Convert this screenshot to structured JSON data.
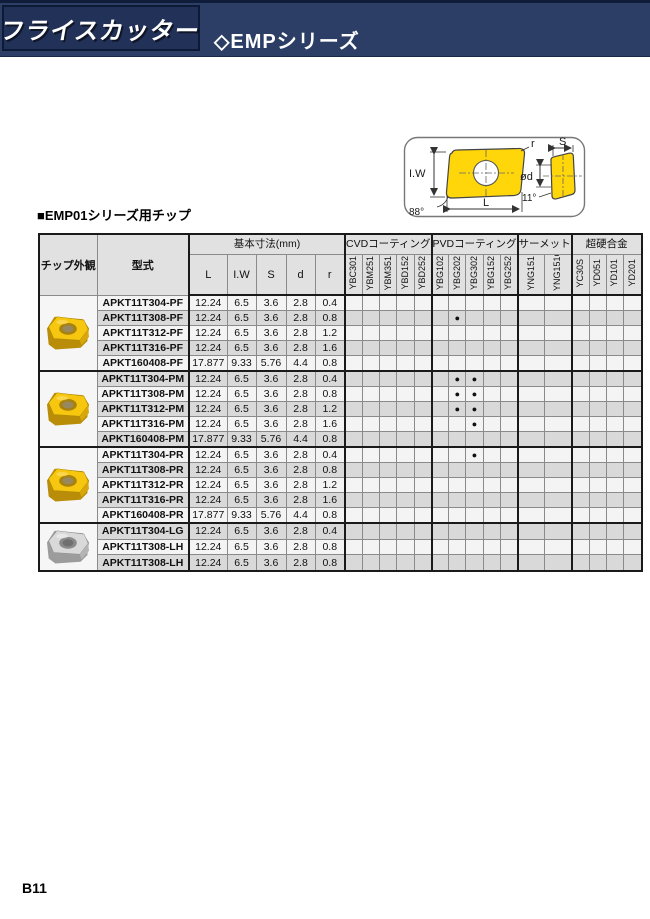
{
  "top_bar": {
    "product_title": "フライスカッター",
    "series_title": "◇EMPシリーズ",
    "bar_color": "#2c3e65",
    "box_color": "#223158"
  },
  "diagram": {
    "labels": {
      "corner_radius": "r",
      "insert_width": "I.W",
      "length": "L",
      "corner_angle": "88°",
      "thickness": "S",
      "hole_diameter": "ød",
      "clearance_angle": "11°"
    }
  },
  "section_title": "■EMP01シリーズ用チップ",
  "table": {
    "appearance_label": "チップ外観",
    "model_label": "型式",
    "dims_label": "基本寸法(mm)",
    "dim_cols": [
      "L",
      "I.W",
      "S",
      "d",
      "r"
    ],
    "column_groups": [
      {
        "label": "CVDコーティング",
        "cols": [
          "YBC301",
          "YBM251",
          "YBM351",
          "YBD152",
          "YBD252"
        ]
      },
      {
        "label": "PVDコーティング",
        "cols": [
          "YBG102",
          "YBG202",
          "YBG302",
          "YBG152",
          "YBG252"
        ]
      },
      {
        "label": "サーメット",
        "cols": [
          "YNG151",
          "YNG151C"
        ]
      },
      {
        "label": "超硬合金",
        "cols": [
          "YC30S",
          "YD051",
          "YD101",
          "YD201"
        ]
      }
    ],
    "coating_column_ids": [
      "YBC301",
      "YBM251",
      "YBM351",
      "YBD152",
      "YBD252",
      "YBG102",
      "YBG202",
      "YBG302",
      "YBG152",
      "YBG252",
      "YNG151",
      "YNG151C",
      "YC30S",
      "YD051",
      "YD101",
      "YD201"
    ],
    "dot_marker": "●",
    "row_groups": [
      {
        "insert": "yellow",
        "rows": [
          {
            "model": "APKT11T304-PF",
            "dims": [
              "12.24",
              "6.5",
              "3.6",
              "2.8",
              "0.4"
            ],
            "dots": []
          },
          {
            "model": "APKT11T308-PF",
            "dims": [
              "12.24",
              "6.5",
              "3.6",
              "2.8",
              "0.8"
            ],
            "dots": [
              "YBG202"
            ]
          },
          {
            "model": "APKT11T312-PF",
            "dims": [
              "12.24",
              "6.5",
              "3.6",
              "2.8",
              "1.2"
            ],
            "dots": []
          },
          {
            "model": "APKT11T316-PF",
            "dims": [
              "12.24",
              "6.5",
              "3.6",
              "2.8",
              "1.6"
            ],
            "dots": []
          },
          {
            "model": "APKT160408-PF",
            "dims": [
              "17.877",
              "9.33",
              "5.76",
              "4.4",
              "0.8"
            ],
            "dots": []
          }
        ]
      },
      {
        "insert": "yellow",
        "rows": [
          {
            "model": "APKT11T304-PM",
            "dims": [
              "12.24",
              "6.5",
              "3.6",
              "2.8",
              "0.4"
            ],
            "dots": [
              "YBG202",
              "YBG302"
            ]
          },
          {
            "model": "APKT11T308-PM",
            "dims": [
              "12.24",
              "6.5",
              "3.6",
              "2.8",
              "0.8"
            ],
            "dots": [
              "YBG202",
              "YBG302"
            ]
          },
          {
            "model": "APKT11T312-PM",
            "dims": [
              "12.24",
              "6.5",
              "3.6",
              "2.8",
              "1.2"
            ],
            "dots": [
              "YBG202",
              "YBG302"
            ]
          },
          {
            "model": "APKT11T316-PM",
            "dims": [
              "12.24",
              "6.5",
              "3.6",
              "2.8",
              "1.6"
            ],
            "dots": [
              "YBG302"
            ]
          },
          {
            "model": "APKT160408-PM",
            "dims": [
              "17.877",
              "9.33",
              "5.76",
              "4.4",
              "0.8"
            ],
            "dots": []
          }
        ]
      },
      {
        "insert": "yellow",
        "rows": [
          {
            "model": "APKT11T304-PR",
            "dims": [
              "12.24",
              "6.5",
              "3.6",
              "2.8",
              "0.4"
            ],
            "dots": [
              "YBG302"
            ]
          },
          {
            "model": "APKT11T308-PR",
            "dims": [
              "12.24",
              "6.5",
              "3.6",
              "2.8",
              "0.8"
            ],
            "dots": []
          },
          {
            "model": "APKT11T312-PR",
            "dims": [
              "12.24",
              "6.5",
              "3.6",
              "2.8",
              "1.2"
            ],
            "dots": []
          },
          {
            "model": "APKT11T316-PR",
            "dims": [
              "12.24",
              "6.5",
              "3.6",
              "2.8",
              "1.6"
            ],
            "dots": []
          },
          {
            "model": "APKT160408-PR",
            "dims": [
              "17.877",
              "9.33",
              "5.76",
              "4.4",
              "0.8"
            ],
            "dots": []
          }
        ]
      },
      {
        "insert": "silver",
        "rows": [
          {
            "model": "APKT11T304-LG",
            "dims": [
              "12.24",
              "6.5",
              "3.6",
              "2.8",
              "0.4"
            ],
            "dots": []
          },
          {
            "model": "APKT11T308-LH",
            "dims": [
              "12.24",
              "6.5",
              "3.6",
              "2.8",
              "0.8"
            ],
            "dots": []
          },
          {
            "model": "APKT11T308-LH",
            "dims": [
              "12.24",
              "6.5",
              "3.6",
              "2.8",
              "0.8"
            ],
            "dots": []
          }
        ]
      }
    ]
  },
  "page": {
    "number": "B11"
  },
  "colors": {
    "insert_yellow_top": "#f6c70e",
    "insert_yellow_side": "#b98d08",
    "insert_silver_top": "#d9d9d9",
    "insert_silver_side": "#9c9c9c",
    "row_shade": "#d9d9d9",
    "row_plain": "#f4f4f4",
    "header_bg": "#e1e1e1",
    "grid_line": "#8a8a8a",
    "group_line": "#1a1a1a"
  }
}
